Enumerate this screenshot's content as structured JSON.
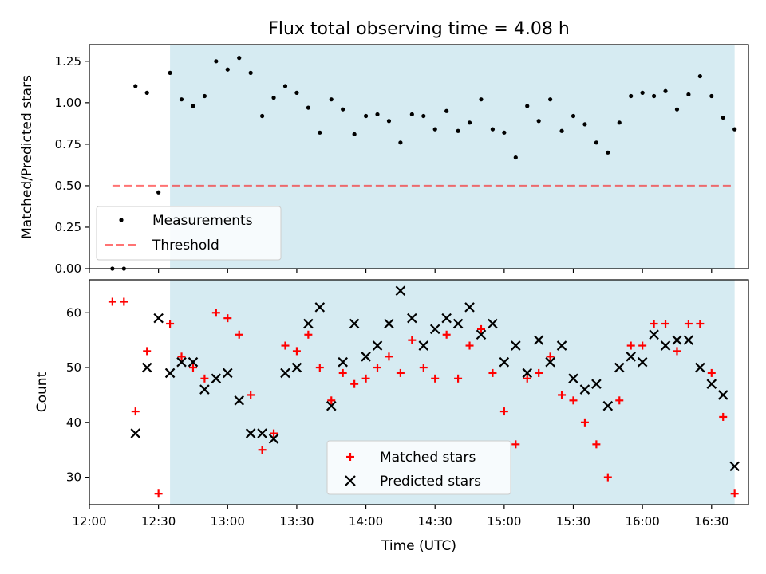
{
  "title": "Flux total observing time = 4.08 h",
  "xlabel": "Time (UTC)",
  "x_ticks": [
    "12:00",
    "12:30",
    "13:00",
    "13:30",
    "14:00",
    "14:30",
    "15:00",
    "15:30",
    "16:00",
    "16:30"
  ],
  "colors": {
    "shade": "#add8e6",
    "measurement": "#000000",
    "threshold": "#ff0000",
    "matched": "#ff0000",
    "predicted": "#000000"
  },
  "chart_data": [
    {
      "type": "scatter",
      "ylabel": "Matched/Predicted stars",
      "xlim": [
        "12:00",
        "16:46"
      ],
      "ylim": [
        0,
        1.35
      ],
      "y_ticks": [
        "0.00",
        "0.25",
        "0.50",
        "0.75",
        "1.00",
        "1.25"
      ],
      "shaded_span": [
        "12:35",
        "16:40"
      ],
      "threshold": {
        "value": 0.5,
        "from": "12:10",
        "to": "16:40",
        "style": "dashed"
      },
      "legend": {
        "position": "lower-left",
        "entries": [
          "Measurements",
          "Threshold"
        ]
      },
      "series": [
        {
          "name": "Measurements",
          "x": [
            "12:10",
            "12:15",
            "12:20",
            "12:25",
            "12:30",
            "12:35",
            "12:40",
            "12:45",
            "12:50",
            "12:55",
            "13:00",
            "13:05",
            "13:10",
            "13:15",
            "13:20",
            "13:25",
            "13:30",
            "13:35",
            "13:40",
            "13:45",
            "13:50",
            "13:55",
            "14:00",
            "14:05",
            "14:10",
            "14:15",
            "14:20",
            "14:25",
            "14:30",
            "14:35",
            "14:40",
            "14:45",
            "14:50",
            "14:55",
            "15:00",
            "15:05",
            "15:10",
            "15:15",
            "15:20",
            "15:25",
            "15:30",
            "15:35",
            "15:40",
            "15:45",
            "15:50",
            "15:55",
            "16:00",
            "16:05",
            "16:10",
            "16:15",
            "16:20",
            "16:25",
            "16:30",
            "16:35",
            "16:40"
          ],
          "y": [
            0.0,
            0.0,
            1.1,
            1.06,
            0.46,
            1.18,
            1.02,
            0.98,
            1.04,
            1.25,
            1.2,
            1.27,
            1.18,
            0.92,
            1.03,
            1.1,
            1.06,
            0.97,
            0.82,
            1.02,
            0.96,
            0.81,
            0.92,
            0.93,
            0.89,
            0.76,
            0.93,
            0.92,
            0.84,
            0.95,
            0.83,
            0.88,
            1.02,
            0.84,
            0.82,
            0.67,
            0.98,
            0.89,
            1.02,
            0.83,
            0.92,
            0.87,
            0.76,
            0.7,
            0.88,
            1.04,
            1.06,
            1.04,
            1.07,
            0.96,
            1.05,
            1.16,
            1.04,
            0.91,
            0.84
          ]
        }
      ]
    },
    {
      "type": "scatter",
      "ylabel": "Count",
      "xlim": [
        "12:00",
        "16:46"
      ],
      "ylim": [
        25,
        66
      ],
      "y_ticks": [
        "30",
        "40",
        "50",
        "60"
      ],
      "shaded_span": [
        "12:35",
        "16:40"
      ],
      "legend": {
        "position": "lower-center",
        "entries": [
          "Matched stars",
          "Predicted stars"
        ]
      },
      "series": [
        {
          "name": "Matched stars",
          "marker": "plus",
          "x": [
            "12:10",
            "12:15",
            "12:20",
            "12:25",
            "12:30",
            "12:35",
            "12:40",
            "12:45",
            "12:50",
            "12:55",
            "13:00",
            "13:05",
            "13:10",
            "13:15",
            "13:20",
            "13:25",
            "13:30",
            "13:35",
            "13:40",
            "13:45",
            "13:50",
            "13:55",
            "14:00",
            "14:05",
            "14:10",
            "14:15",
            "14:20",
            "14:25",
            "14:30",
            "14:35",
            "14:40",
            "14:45",
            "14:50",
            "14:55",
            "15:00",
            "15:05",
            "15:10",
            "15:15",
            "15:20",
            "15:25",
            "15:30",
            "15:35",
            "15:40",
            "15:45",
            "15:50",
            "15:55",
            "16:00",
            "16:05",
            "16:10",
            "16:15",
            "16:20",
            "16:25",
            "16:30",
            "16:35",
            "16:40"
          ],
          "y": [
            62,
            62,
            42,
            53,
            27,
            58,
            52,
            50,
            48,
            60,
            59,
            56,
            45,
            35,
            38,
            54,
            53,
            56,
            50,
            44,
            49,
            47,
            48,
            50,
            52,
            49,
            55,
            50,
            48,
            56,
            48,
            54,
            57,
            49,
            42,
            36,
            48,
            49,
            52,
            45,
            44,
            40,
            36,
            30,
            44,
            54,
            54,
            58,
            58,
            53,
            58,
            58,
            49,
            41,
            27
          ]
        },
        {
          "name": "Predicted stars",
          "marker": "x",
          "x": [
            "12:20",
            "12:25",
            "12:30",
            "12:35",
            "12:40",
            "12:45",
            "12:50",
            "12:55",
            "13:00",
            "13:05",
            "13:10",
            "13:15",
            "13:20",
            "13:25",
            "13:30",
            "13:35",
            "13:40",
            "13:45",
            "13:50",
            "13:55",
            "14:00",
            "14:05",
            "14:10",
            "14:15",
            "14:20",
            "14:25",
            "14:30",
            "14:35",
            "14:40",
            "14:45",
            "14:50",
            "14:55",
            "15:00",
            "15:05",
            "15:10",
            "15:15",
            "15:20",
            "15:25",
            "15:30",
            "15:35",
            "15:40",
            "15:45",
            "15:50",
            "15:55",
            "16:00",
            "16:05",
            "16:10",
            "16:15",
            "16:20",
            "16:25",
            "16:30",
            "16:35",
            "16:40"
          ],
          "y": [
            38,
            50,
            59,
            49,
            51,
            51,
            46,
            48,
            49,
            44,
            38,
            38,
            37,
            49,
            50,
            58,
            61,
            43,
            51,
            58,
            52,
            54,
            58,
            64,
            59,
            54,
            57,
            59,
            58,
            61,
            56,
            58,
            51,
            54,
            49,
            55,
            51,
            54,
            48,
            46,
            47,
            43,
            50,
            52,
            51,
            56,
            54,
            55,
            55,
            50,
            47,
            45,
            32
          ]
        }
      ]
    }
  ]
}
